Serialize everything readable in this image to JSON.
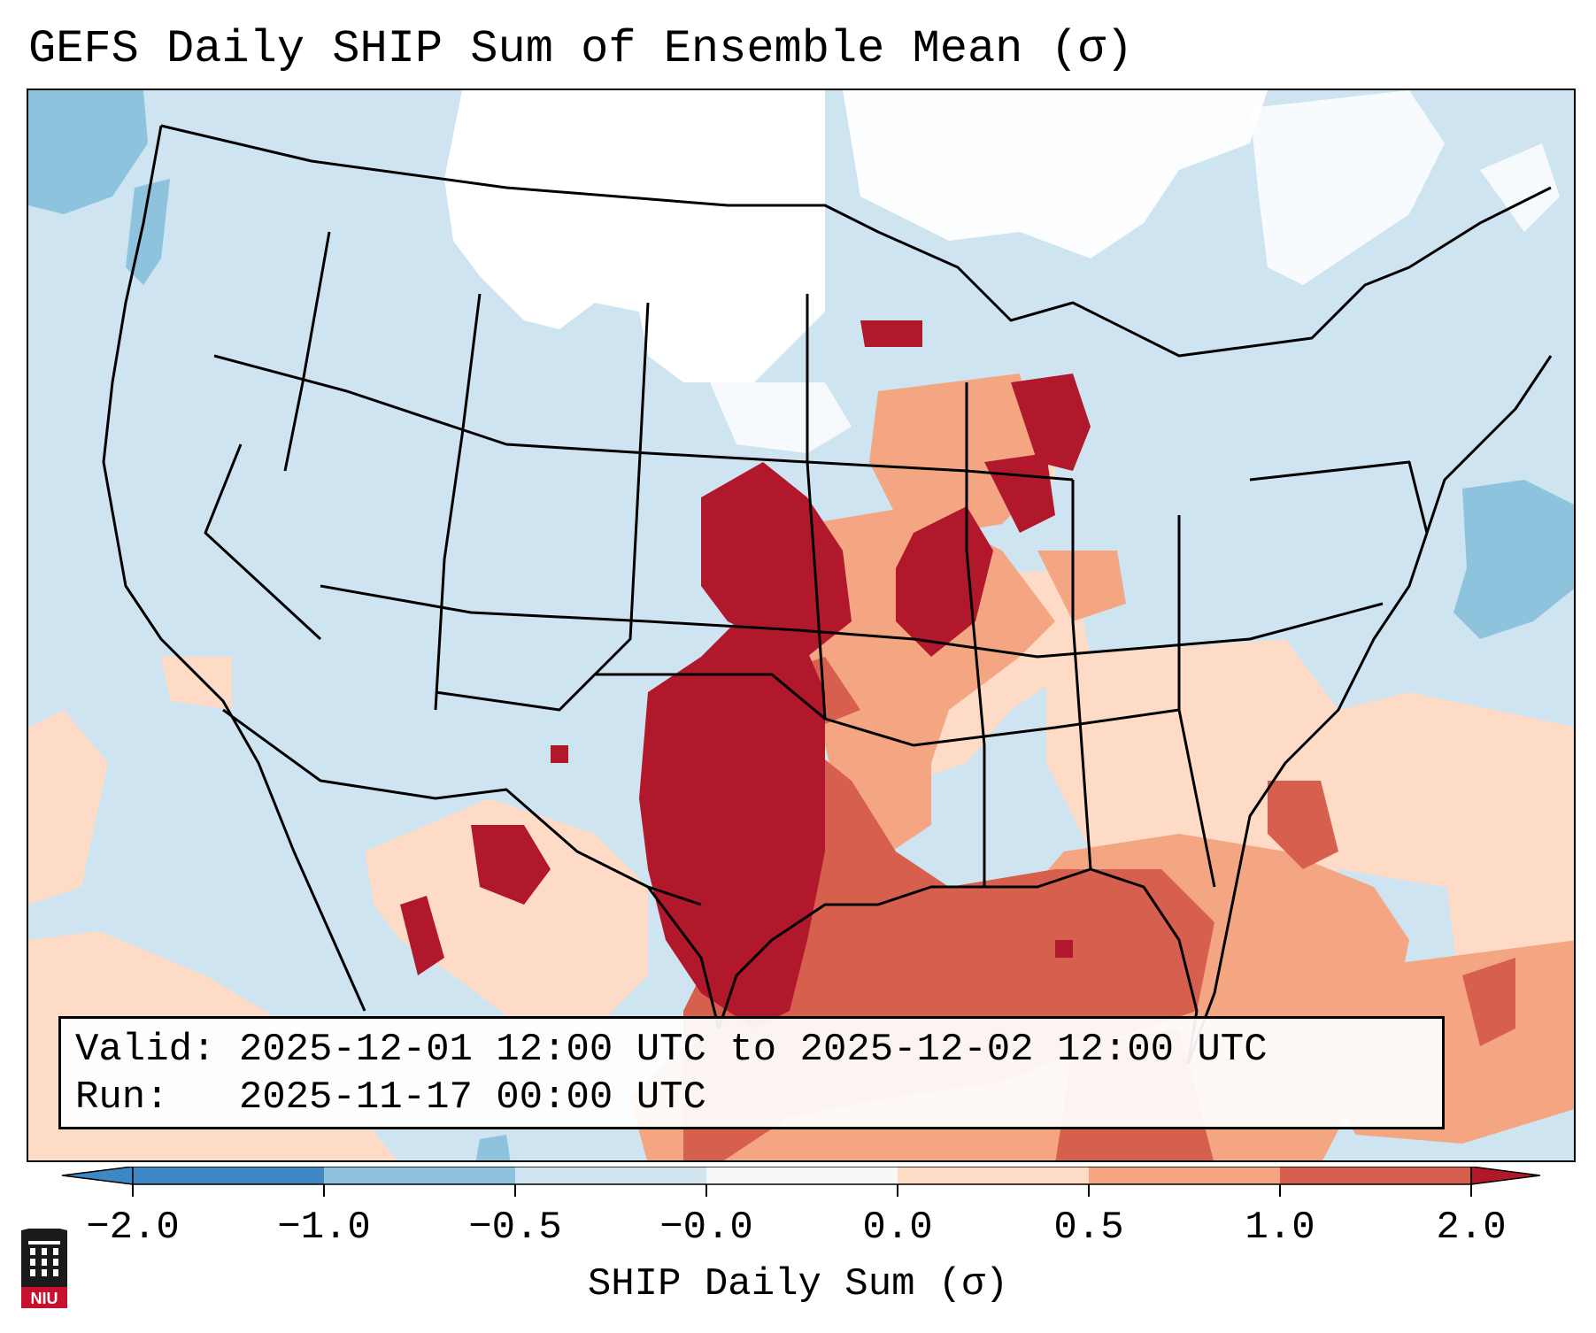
{
  "title": "GEFS Daily SHIP Sum of Ensemble Mean (σ)",
  "info": {
    "valid_line": "Valid: 2025-12-01 12:00 UTC to 2025-12-02 12:00 UTC",
    "run_line": "Run:   2025-11-17 00:00 UTC"
  },
  "colorbar": {
    "label": "SHIP Daily Sum (σ)",
    "ticks": [
      "−2.0",
      "−1.0",
      "−0.5",
      "−0.0",
      "0.0",
      "0.5",
      "1.0",
      "2.0"
    ],
    "colors": [
      "#3f87c2",
      "#8ec3de",
      "#d1e5f0",
      "#f7f7f7",
      "#fddbc7",
      "#f4a582",
      "#d6604d",
      "#b2182b"
    ]
  },
  "logo": {
    "text": "NIU",
    "color": "#c8102e"
  }
}
